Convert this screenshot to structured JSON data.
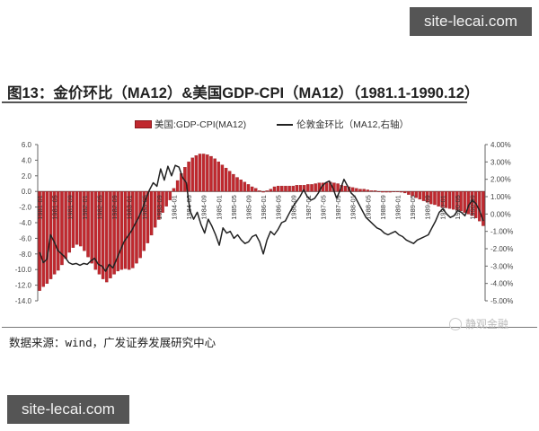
{
  "watermarks": [
    "site-lecai.com",
    "site-lecai.com"
  ],
  "title": "图13：金价环比（MA12）&美国GDP-CPI（MA12）（1981.1-1990.12）",
  "source": "数据来源：wind，广发证券发展研究中心",
  "brand": "静观金融",
  "colors": {
    "bar": "#c0282e",
    "bar_edge": "#8b1a1e",
    "line": "#222222"
  },
  "chart_data": {
    "type": "bar+line",
    "title": "金价环比（MA12）&美国GDP-CPI（MA12）（1981.1-1990.12）",
    "legend": [
      "美国:GDP-CPI(MA12)",
      "伦敦金环比（MA12,右轴）"
    ],
    "legend_position": "top",
    "grid": false,
    "left_axis": {
      "ticks": [
        "6.0",
        "4.0",
        "2.0",
        "0.0",
        "-2.0",
        "-4.0",
        "-6.0",
        "-8.0",
        "-10.0",
        "-12.0",
        "-14.0"
      ],
      "range": [
        -14,
        6
      ]
    },
    "right_axis": {
      "ticks": [
        "4.00%",
        "3.00%",
        "2.00%",
        "1.00%",
        "0.00%",
        "-1.00%",
        "-2.00%",
        "-3.00%",
        "-4.00%",
        "-5.00%"
      ],
      "range": [
        -5,
        4
      ]
    },
    "x_tick_labels": [
      "1981-01",
      "1981-05",
      "1981-09",
      "1982-01",
      "1982-05",
      "1982-09",
      "1983-01",
      "1983-05",
      "1983-09",
      "1984-01",
      "1984-05",
      "1984-09",
      "1985-01",
      "1985-05",
      "1985-09",
      "1986-01",
      "1986-05",
      "1986-09",
      "1987-01",
      "1987-05",
      "1987-09",
      "1988-01",
      "1988-05",
      "1988-09",
      "1989-01",
      "1989-05",
      "1989-09",
      "1990-01",
      "1990-05",
      "1990-09"
    ],
    "series": [
      {
        "name": "美国:GDP-CPI(MA12)",
        "axis": "left",
        "type": "bar",
        "values": [
          -12.7,
          -12.2,
          -11.8,
          -11.2,
          -10.6,
          -10.1,
          -9.4,
          -8.6,
          -7.8,
          -7.2,
          -6.8,
          -7.0,
          -7.6,
          -8.4,
          -9.2,
          -10.0,
          -10.6,
          -11.2,
          -11.6,
          -11.1,
          -10.6,
          -10.2,
          -10.0,
          -9.9,
          -10.0,
          -9.8,
          -9.2,
          -8.5,
          -7.6,
          -6.6,
          -5.6,
          -4.6,
          -3.6,
          -2.7,
          -1.9,
          -1.1,
          0.4,
          1.4,
          2.3,
          3.1,
          3.8,
          4.3,
          4.6,
          4.8,
          4.8,
          4.7,
          4.5,
          4.2,
          3.8,
          3.4,
          3.0,
          2.6,
          2.2,
          1.8,
          1.5,
          1.2,
          0.9,
          0.6,
          0.4,
          0.1,
          -0.1,
          0.1,
          0.3,
          0.6,
          0.7,
          0.7,
          0.7,
          0.7,
          0.7,
          0.8,
          0.8,
          0.8,
          0.9,
          0.9,
          1.0,
          1.1,
          1.1,
          1.1,
          1.2,
          1.1,
          1.0,
          0.8,
          0.7,
          0.6,
          0.5,
          0.4,
          0.3,
          0.3,
          0.2,
          0.1,
          0.1,
          0.0,
          -0.1,
          -0.1,
          -0.1,
          0.0,
          0.0,
          -0.1,
          -0.2,
          -0.4,
          -0.6,
          -0.8,
          -1.0,
          -1.2,
          -1.4,
          -1.6,
          -1.7,
          -1.9,
          -2.0,
          -2.1,
          -2.2,
          -2.3,
          -2.4,
          -2.5,
          -2.7,
          -2.9,
          -3.1,
          -3.4,
          -3.8,
          -4.4
        ]
      },
      {
        "name": "伦敦金环比（MA12,右轴）",
        "axis": "right",
        "type": "line",
        "values": [
          -2.2,
          -2.8,
          -2.6,
          -1.2,
          -1.6,
          -2.1,
          -2.3,
          -2.5,
          -2.8,
          -2.9,
          -2.85,
          -2.95,
          -2.85,
          -2.9,
          -2.7,
          -2.55,
          -2.9,
          -3.0,
          -3.3,
          -2.9,
          -3.1,
          -2.6,
          -2.1,
          -1.6,
          -1.3,
          -1.0,
          -0.6,
          -0.2,
          0.3,
          0.9,
          1.4,
          1.8,
          1.6,
          2.6,
          1.95,
          2.75,
          2.2,
          2.8,
          2.7,
          2.1,
          1.8,
          0.2,
          -0.3,
          0.1,
          -0.6,
          -1.1,
          -0.3,
          -0.7,
          -1.2,
          -1.8,
          -0.8,
          -1.1,
          -1.0,
          -1.4,
          -1.2,
          -1.5,
          -1.7,
          -1.6,
          -1.3,
          -1.2,
          -1.6,
          -2.3,
          -1.5,
          -1.0,
          -1.2,
          -0.9,
          -0.5,
          -0.4,
          0.0,
          0.4,
          0.7,
          1.0,
          1.4,
          1.0,
          0.8,
          0.9,
          1.2,
          1.6,
          1.8,
          1.9,
          1.5,
          0.9,
          1.4,
          2.0,
          1.6,
          1.2,
          1.0,
          0.6,
          0.2,
          -0.2,
          -0.4,
          -0.6,
          -0.8,
          -0.9,
          -1.1,
          -1.2,
          -1.1,
          -1.0,
          -1.2,
          -1.3,
          -1.5,
          -1.6,
          -1.7,
          -1.5,
          -1.4,
          -1.3,
          -1.2,
          -0.8,
          -0.4,
          0.1,
          0.3,
          0.0,
          -0.2,
          -0.1,
          0.2,
          0.1,
          -0.1,
          0.5,
          0.8,
          0.6,
          0.2,
          -0.4
        ]
      }
    ]
  }
}
